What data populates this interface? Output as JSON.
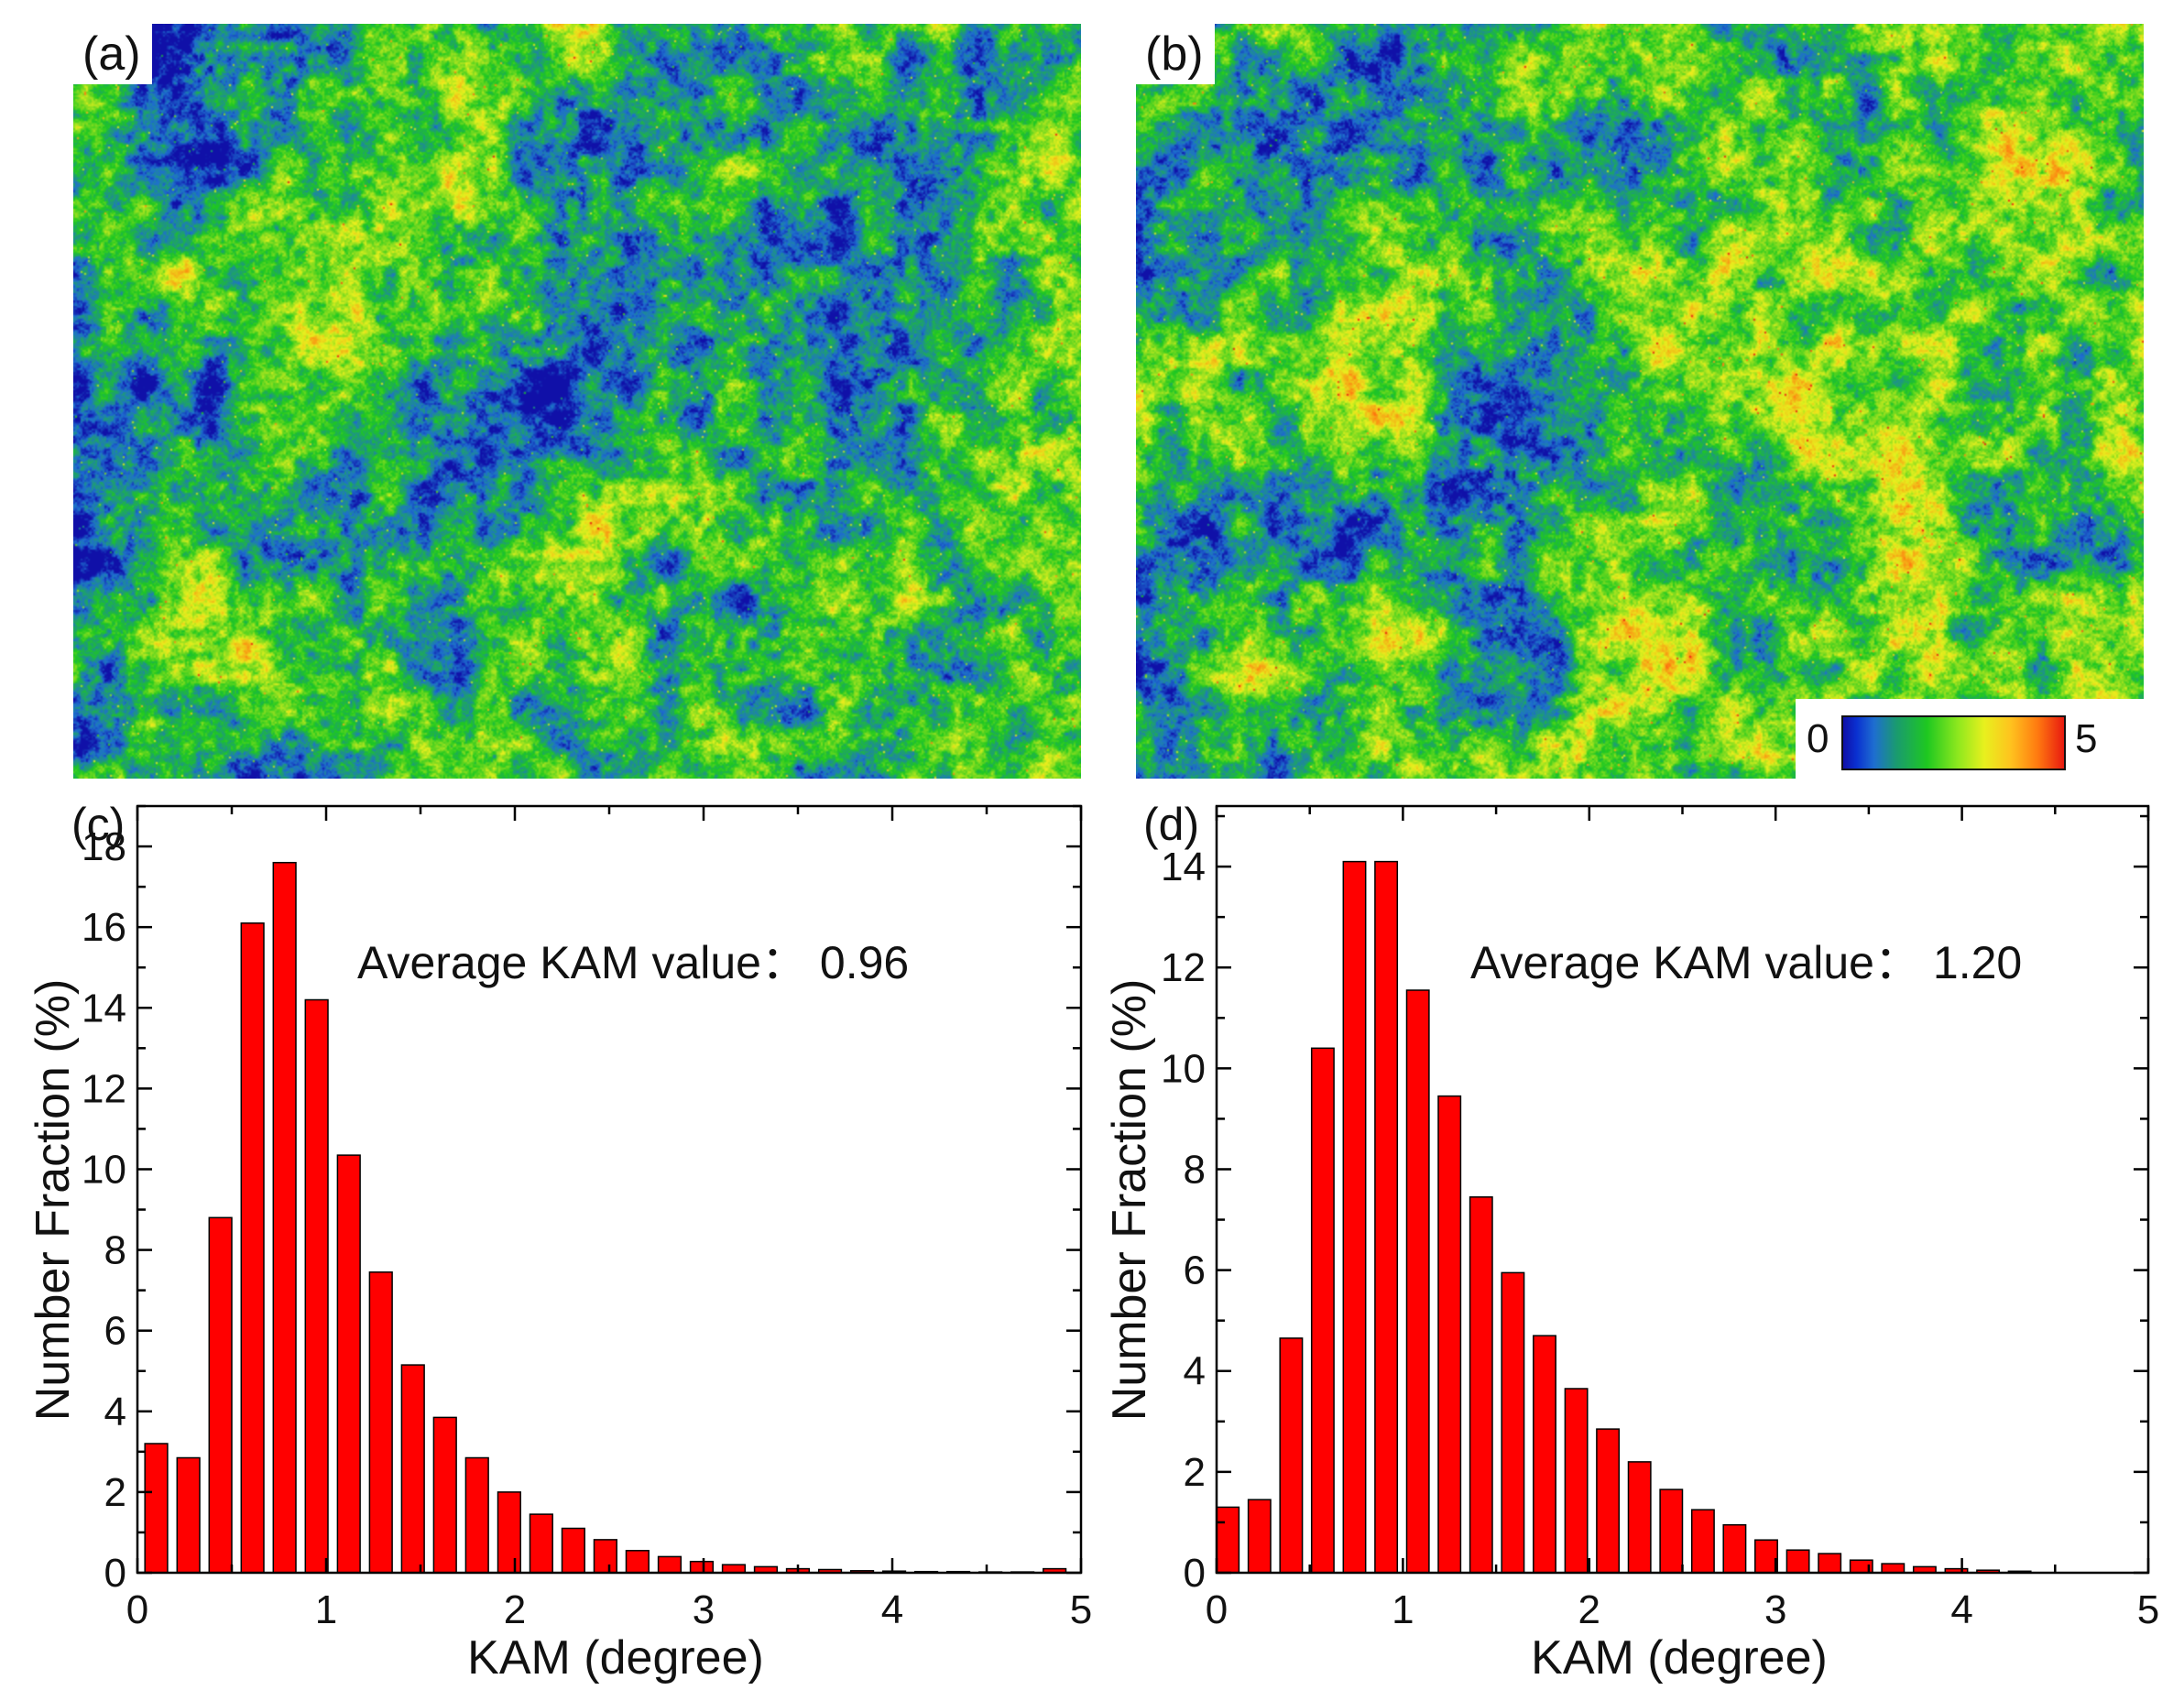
{
  "panels": {
    "a": {
      "label": "(a)"
    },
    "b": {
      "label": "(b)"
    },
    "c": {
      "label": "(c)"
    },
    "d": {
      "label": "(d)"
    }
  },
  "colorbar": {
    "min_label": "0",
    "max_label": "5",
    "colors": [
      "#1010a8",
      "#1e6ed0",
      "#1ec820",
      "#e8f01e",
      "#ff7a10",
      "#e81a10"
    ]
  },
  "chart_data": [
    {
      "type": "bar",
      "panel": "(c)",
      "annotation": "Average KAM value： 0.96",
      "xlabel": "KAM (degree)",
      "ylabel": "Number Fraction (%)",
      "xlim": [
        0,
        5
      ],
      "ylim": [
        0,
        19
      ],
      "xticks": [
        0,
        1,
        2,
        3,
        4,
        5
      ],
      "yticks": [
        0,
        2,
        4,
        6,
        8,
        10,
        12,
        14,
        16,
        18
      ],
      "bar_width": 0.12,
      "bar_color": "#ff0000",
      "grid": false,
      "x": [
        0.1,
        0.27,
        0.44,
        0.61,
        0.78,
        0.95,
        1.12,
        1.29,
        1.46,
        1.63,
        1.8,
        1.97,
        2.14,
        2.31,
        2.48,
        2.65,
        2.82,
        2.99,
        3.16,
        3.33,
        3.5,
        3.67,
        3.84,
        4.01,
        4.18,
        4.35,
        4.52,
        4.69,
        4.86
      ],
      "values": [
        3.2,
        2.85,
        8.8,
        16.1,
        17.6,
        14.2,
        10.35,
        7.45,
        5.15,
        3.85,
        2.85,
        2.0,
        1.45,
        1.1,
        0.82,
        0.55,
        0.4,
        0.28,
        0.2,
        0.15,
        0.1,
        0.08,
        0.05,
        0.04,
        0.03,
        0.03,
        0.02,
        0.02,
        0.1
      ]
    },
    {
      "type": "bar",
      "panel": "(d)",
      "annotation": "Average KAM value： 1.20",
      "xlabel": "KAM (degree)",
      "ylabel": "Number Fraction (%)",
      "xlim": [
        0,
        5
      ],
      "ylim": [
        0,
        15.2
      ],
      "xticks": [
        0,
        1,
        2,
        3,
        4,
        5
      ],
      "yticks": [
        0,
        2,
        4,
        6,
        8,
        10,
        12,
        14
      ],
      "bar_width": 0.12,
      "bar_color": "#ff0000",
      "grid": false,
      "x": [
        0.06,
        0.23,
        0.4,
        0.57,
        0.74,
        0.91,
        1.08,
        1.25,
        1.42,
        1.59,
        1.76,
        1.93,
        2.1,
        2.27,
        2.44,
        2.61,
        2.78,
        2.95,
        3.12,
        3.29,
        3.46,
        3.63,
        3.8,
        3.97,
        4.14,
        4.31
      ],
      "values": [
        1.3,
        1.45,
        4.65,
        10.4,
        14.1,
        14.1,
        11.55,
        9.45,
        7.45,
        5.95,
        4.7,
        3.65,
        2.85,
        2.2,
        1.65,
        1.25,
        0.95,
        0.65,
        0.45,
        0.38,
        0.25,
        0.18,
        0.12,
        0.08,
        0.05,
        0.03
      ]
    }
  ]
}
